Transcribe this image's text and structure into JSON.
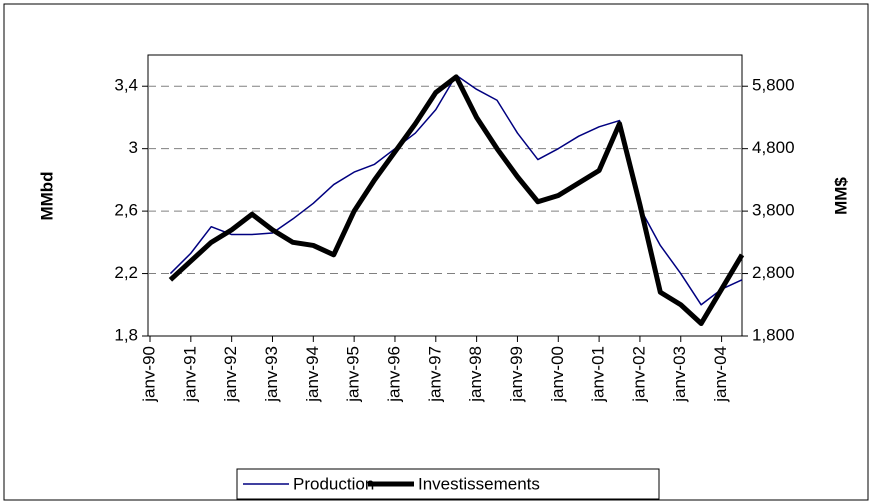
{
  "chart_data": {
    "type": "line",
    "categories": [
      "janv-90",
      null,
      "janv-91",
      null,
      "janv-92",
      null,
      "janv-93",
      null,
      "janv-94",
      null,
      "janv-95",
      null,
      "janv-96",
      null,
      "janv-97",
      null,
      "janv-98",
      null,
      "janv-99",
      null,
      "janv-00",
      null,
      "janv-01",
      null,
      "janv-02",
      null,
      "janv-03",
      null,
      "janv-04",
      null
    ],
    "series": [
      {
        "name": "Production",
        "color": "#000080",
        "axis": "y",
        "values": [
          null,
          2.2,
          2.33,
          2.5,
          2.45,
          2.45,
          2.46,
          2.55,
          2.65,
          2.77,
          2.85,
          2.9,
          3.0,
          3.1,
          3.25,
          3.47,
          3.38,
          3.31,
          3.1,
          2.93,
          3.0,
          3.08,
          3.14,
          3.18,
          2.62,
          2.38,
          2.2,
          2.0,
          2.1,
          2.16
        ]
      },
      {
        "name": "Investissements",
        "color": "#000000",
        "axis": "y2",
        "values": [
          null,
          2700,
          3000,
          3300,
          3500,
          3750,
          3500,
          3300,
          3250,
          3100,
          3800,
          4300,
          4750,
          5200,
          5700,
          5950,
          5300,
          4800,
          4350,
          3950,
          4050,
          4250,
          4450,
          5200,
          3900,
          2500,
          2300,
          2000,
          2550,
          3100
        ]
      }
    ],
    "ylabel": "MMbd",
    "y2label": "MM$",
    "ylim": [
      1.8,
      3.6
    ],
    "yticks": [
      {
        "value": 1.8,
        "label": "1,8"
      },
      {
        "value": 2.2,
        "label": "2,2"
      },
      {
        "value": 2.6,
        "label": "2,6"
      },
      3,
      {
        "value": 3.4,
        "label": "3,4"
      }
    ],
    "y2lim": [
      1800,
      6300
    ],
    "y2ticks": [
      {
        "value": 1800,
        "label": "1,800"
      },
      {
        "value": 2800,
        "label": "2,800"
      },
      {
        "value": 3800,
        "label": "3,800"
      },
      {
        "value": 4800,
        "label": "4,800"
      },
      {
        "value": 5800,
        "label": "5,800"
      }
    ],
    "grid": true,
    "legend": "bottom"
  }
}
